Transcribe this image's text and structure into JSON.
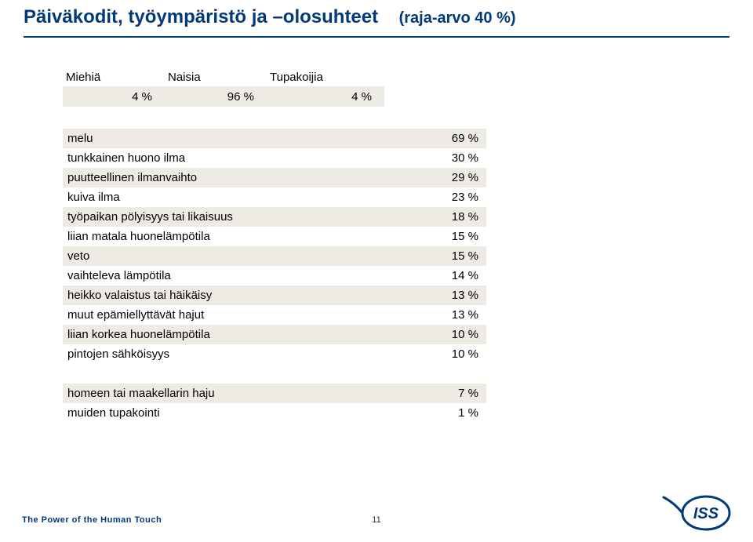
{
  "colors": {
    "brand": "#003a78",
    "tableAlt": "#eeebe5",
    "text": "#000000",
    "background": "#ffffff"
  },
  "title": {
    "main": "Päiväkodit, työympäristö ja –olosuhteet",
    "sub": "(raja-arvo 40 %)"
  },
  "stats": {
    "miehia": {
      "label": "Miehiä",
      "value": "4 %"
    },
    "naisia": {
      "label": "Naisia",
      "value": "96 %"
    },
    "tupakoijia": {
      "label": "Tupakoijia",
      "value": "4 %"
    }
  },
  "factorsTop": [
    {
      "label": "melu",
      "value": "69 %"
    },
    {
      "label": "tunkkainen huono ilma",
      "value": "30 %"
    },
    {
      "label": "puutteellinen ilmanvaihto",
      "value": "29 %"
    },
    {
      "label": "kuiva ilma",
      "value": "23 %"
    },
    {
      "label": "työpaikan pölyisyys tai likaisuus",
      "value": "18 %"
    },
    {
      "label": "liian matala huonelämpötila",
      "value": "15 %"
    },
    {
      "label": "veto",
      "value": "15 %"
    },
    {
      "label": "vaihteleva lämpötila",
      "value": "14 %"
    },
    {
      "label": "heikko valaistus tai häikäisy",
      "value": "13 %"
    },
    {
      "label": "muut epämiellyttävät hajut",
      "value": "13 %"
    },
    {
      "label": "liian korkea huonelämpötila",
      "value": "10 %"
    },
    {
      "label": "pintojen sähköisyys",
      "value": "10 %"
    }
  ],
  "factorsBottom": [
    {
      "label": "homeen tai maakellarin haju",
      "value": "7 %"
    },
    {
      "label": "muiden tupakointi",
      "value": "1 %"
    }
  ],
  "footer": {
    "tagline": "The Power of the Human Touch",
    "pageNumber": "11",
    "logoText": "ISS"
  }
}
